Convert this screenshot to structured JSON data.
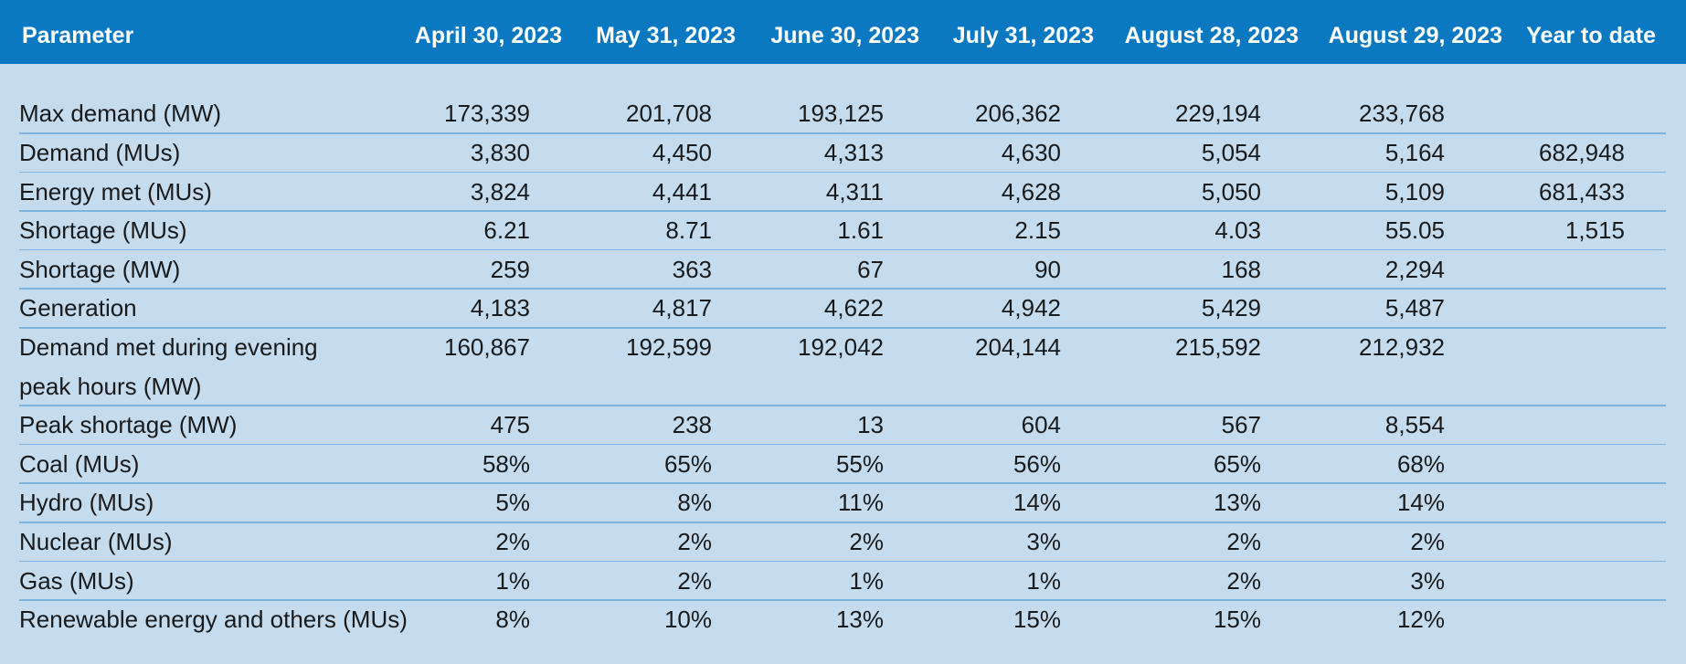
{
  "header": [
    "Parameter",
    "April 30, 2023",
    "May 31, 2023",
    "June 30, 2023",
    "July 31, 2023",
    "August 28, 2023",
    "August 29, 2023",
    "Year to date"
  ],
  "rows": [
    [
      "Max demand (MW)",
      "173,339",
      "201,708",
      "193,125",
      "206,362",
      "229,194",
      "233,768",
      null
    ],
    [
      "Demand (MUs)",
      "3,830",
      "4,450",
      "4,313",
      "4,630",
      "5,054",
      "5,164",
      "682,948"
    ],
    [
      "Energy met (MUs)",
      "3,824",
      "4,441",
      "4,311",
      "4,628",
      "5,050",
      "5,109",
      "681,433"
    ],
    [
      "Shortage (MUs)",
      "6.21",
      "8.71",
      "1.61",
      "2.15",
      "4.03",
      "55.05",
      "1,515"
    ],
    [
      "Shortage (MW)",
      "259",
      "363",
      "67",
      "90",
      "168",
      "2,294",
      null
    ],
    [
      "Generation",
      "4,183",
      "4,817",
      "4,622",
      "4,942",
      "5,429",
      "5,487",
      null
    ],
    [
      "Demand met during evening peak hours (MW)",
      "160,867",
      "192,599",
      "192,042",
      "204,144",
      "215,592",
      "212,932",
      null
    ],
    [
      "Peak shortage (MW)",
      "475",
      "238",
      "13",
      "604",
      "567",
      "8,554",
      null
    ],
    [
      "Coal (MUs)",
      "58%",
      "65%",
      "55%",
      "56%",
      "65%",
      "68%",
      null
    ],
    [
      "Hydro (MUs)",
      "5%",
      "8%",
      "11%",
      "14%",
      "13%",
      "14%",
      null
    ],
    [
      "Nuclear (MUs)",
      "2%",
      "2%",
      "2%",
      "3%",
      "2%",
      "2%",
      null
    ],
    [
      "Gas (MUs)",
      "1%",
      "2%",
      "1%",
      "1%",
      "2%",
      "3%",
      null
    ],
    [
      "Renewable energy and others (MUs)",
      "8%",
      "10%",
      "13%",
      "15%",
      "15%",
      "12%",
      null
    ]
  ]
}
